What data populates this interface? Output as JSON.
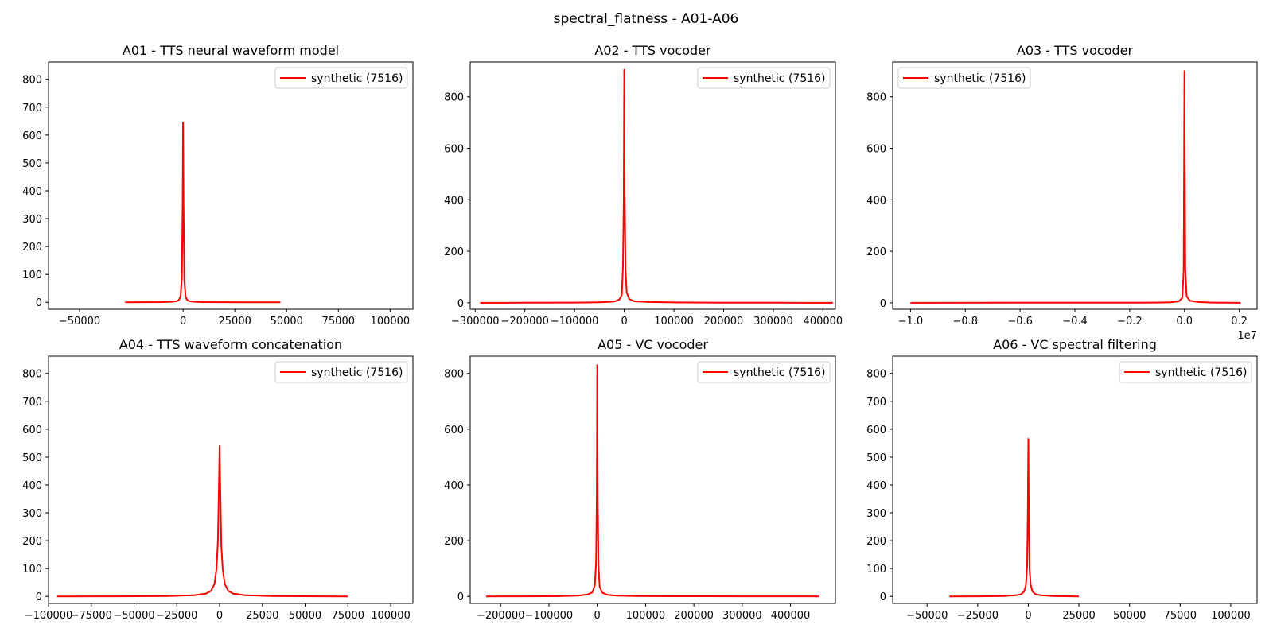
{
  "figure_title": "spectral_flatness - A01-A06",
  "colors": {
    "series": "#ff0000",
    "axes": "#000000",
    "legend_border": "#cccccc"
  },
  "chart_data": [
    {
      "type": "line",
      "title": "A01 - TTS neural waveform model",
      "xlim": [
        -65000,
        111000
      ],
      "ylim": [
        -25,
        862
      ],
      "xticks": [
        -50000,
        0,
        25000,
        50000,
        75000,
        100000
      ],
      "xtick_labels": [
        "−50000",
        "0",
        "25000",
        "50000",
        "75000",
        "100000"
      ],
      "yticks": [
        0,
        100,
        200,
        300,
        400,
        500,
        600,
        700,
        800
      ],
      "x_offset_label": "",
      "legend": "upper right",
      "series": [
        {
          "name": "synthetic (7516)",
          "x": [
            -28000,
            -20000,
            -10000,
            -5000,
            -3000,
            -2000,
            -1200,
            -600,
            -200,
            0,
            200,
            600,
            1200,
            2000,
            3000,
            5000,
            10000,
            20000,
            30000,
            47000
          ],
          "y": [
            0,
            0.3,
            0.8,
            2,
            4,
            8,
            22,
            90,
            350,
            645,
            350,
            80,
            20,
            8,
            4,
            2,
            0.8,
            0.3,
            0.1,
            0
          ]
        }
      ]
    },
    {
      "type": "line",
      "title": "A02 - TTS vocoder",
      "xlim": [
        -310000,
        425000
      ],
      "ylim": [
        -25,
        935
      ],
      "xticks": [
        -300000,
        -200000,
        -100000,
        0,
        100000,
        200000,
        300000,
        400000
      ],
      "xtick_labels": [
        "−300000",
        "−200000",
        "−100000",
        "0",
        "100000",
        "200000",
        "300000",
        "400000"
      ],
      "yticks": [
        0,
        200,
        400,
        600,
        800
      ],
      "x_offset_label": "",
      "legend": "upper right",
      "series": [
        {
          "name": "synthetic (7516)",
          "x": [
            -290000,
            -200000,
            -100000,
            -50000,
            -20000,
            -10000,
            -5000,
            -2500,
            -1000,
            0,
            1000,
            2500,
            5000,
            10000,
            20000,
            50000,
            100000,
            200000,
            300000,
            420000
          ],
          "y": [
            0,
            0.3,
            0.8,
            2,
            5,
            12,
            30,
            140,
            400,
            905,
            420,
            130,
            40,
            15,
            6,
            3,
            1.5,
            0.5,
            0.3,
            0
          ]
        }
      ]
    },
    {
      "type": "line",
      "title": "A03 - TTS vocoder",
      "xlim": [
        -10650000,
        2650000
      ],
      "ylim": [
        -25,
        935
      ],
      "xticks": [
        -10000000,
        -8000000,
        -6000000,
        -4000000,
        -2000000,
        0,
        2000000
      ],
      "xtick_labels": [
        "−1.0",
        "−0.8",
        "−0.6",
        "−0.4",
        "−0.2",
        "0.0",
        "0.2"
      ],
      "yticks": [
        0,
        200,
        400,
        600,
        800
      ],
      "x_offset_label": "1e7",
      "legend": "upper left",
      "series": [
        {
          "name": "synthetic (7516)",
          "x": [
            -10000000,
            -6000000,
            -2000000,
            -1000000,
            -500000,
            -200000,
            -80000,
            -30000,
            0,
            30000,
            80000,
            200000,
            500000,
            1000000,
            1500000,
            2050000
          ],
          "y": [
            0,
            0.2,
            0.5,
            1,
            2,
            6,
            20,
            120,
            900,
            130,
            25,
            8,
            3,
            1,
            0.5,
            0
          ]
        }
      ]
    },
    {
      "type": "line",
      "title": "A04 - TTS waveform concatenation",
      "xlim": [
        -100000,
        113000
      ],
      "ylim": [
        -25,
        862
      ],
      "xticks": [
        -100000,
        -75000,
        -50000,
        -25000,
        0,
        25000,
        50000,
        75000,
        100000
      ],
      "xtick_labels": [
        "−100000",
        "−75000",
        "−50000",
        "−25000",
        "0",
        "25000",
        "50000",
        "75000",
        "100000"
      ],
      "yticks": [
        0,
        100,
        200,
        300,
        400,
        500,
        600,
        700,
        800
      ],
      "x_offset_label": "",
      "legend": "upper right",
      "series": [
        {
          "name": "synthetic (7516)",
          "x": [
            -95000,
            -60000,
            -30000,
            -15000,
            -8000,
            -5000,
            -3000,
            -1800,
            -1000,
            -400,
            0,
            400,
            1000,
            1800,
            3000,
            5000,
            8000,
            15000,
            30000,
            60000,
            75000
          ],
          "y": [
            0,
            0.5,
            1.5,
            4,
            10,
            20,
            45,
            100,
            200,
            400,
            540,
            380,
            180,
            100,
            45,
            20,
            10,
            4,
            1.5,
            0.5,
            0
          ]
        }
      ]
    },
    {
      "type": "line",
      "title": "A05 - VC vocoder",
      "xlim": [
        -263000,
        493000
      ],
      "ylim": [
        -25,
        862
      ],
      "xticks": [
        -200000,
        -100000,
        0,
        100000,
        200000,
        300000,
        400000
      ],
      "xtick_labels": [
        "−200000",
        "−100000",
        "0",
        "100000",
        "200000",
        "300000",
        "400000"
      ],
      "yticks": [
        0,
        200,
        400,
        600,
        800
      ],
      "x_offset_label": "",
      "legend": "upper right",
      "series": [
        {
          "name": "synthetic (7516)",
          "x": [
            -230000,
            -150000,
            -80000,
            -40000,
            -20000,
            -10000,
            -5000,
            -2500,
            -1000,
            0,
            1000,
            2500,
            5000,
            10000,
            20000,
            40000,
            80000,
            150000,
            300000,
            460000
          ],
          "y": [
            0,
            0.4,
            1,
            3,
            7,
            15,
            40,
            120,
            350,
            830,
            350,
            110,
            35,
            14,
            6,
            3,
            1.5,
            0.6,
            0.3,
            0
          ]
        }
      ]
    },
    {
      "type": "line",
      "title": "A06 - VC spectral filtering",
      "xlim": [
        -67000,
        113000
      ],
      "ylim": [
        -25,
        862
      ],
      "xticks": [
        -50000,
        -25000,
        0,
        25000,
        50000,
        75000,
        100000
      ],
      "xtick_labels": [
        "−50000",
        "−25000",
        "0",
        "25000",
        "50000",
        "75000",
        "100000"
      ],
      "yticks": [
        0,
        100,
        200,
        300,
        400,
        500,
        600,
        700,
        800
      ],
      "x_offset_label": "",
      "legend": "upper right",
      "series": [
        {
          "name": "synthetic (7516)",
          "x": [
            -39000,
            -25000,
            -12000,
            -6000,
            -3500,
            -2000,
            -1200,
            -600,
            -250,
            0,
            250,
            600,
            1200,
            2000,
            3500,
            6000,
            12000,
            25000
          ],
          "y": [
            0,
            0.5,
            1.5,
            4,
            8,
            18,
            40,
            110,
            300,
            565,
            300,
            100,
            40,
            18,
            8,
            4,
            1.5,
            0
          ]
        }
      ]
    }
  ]
}
